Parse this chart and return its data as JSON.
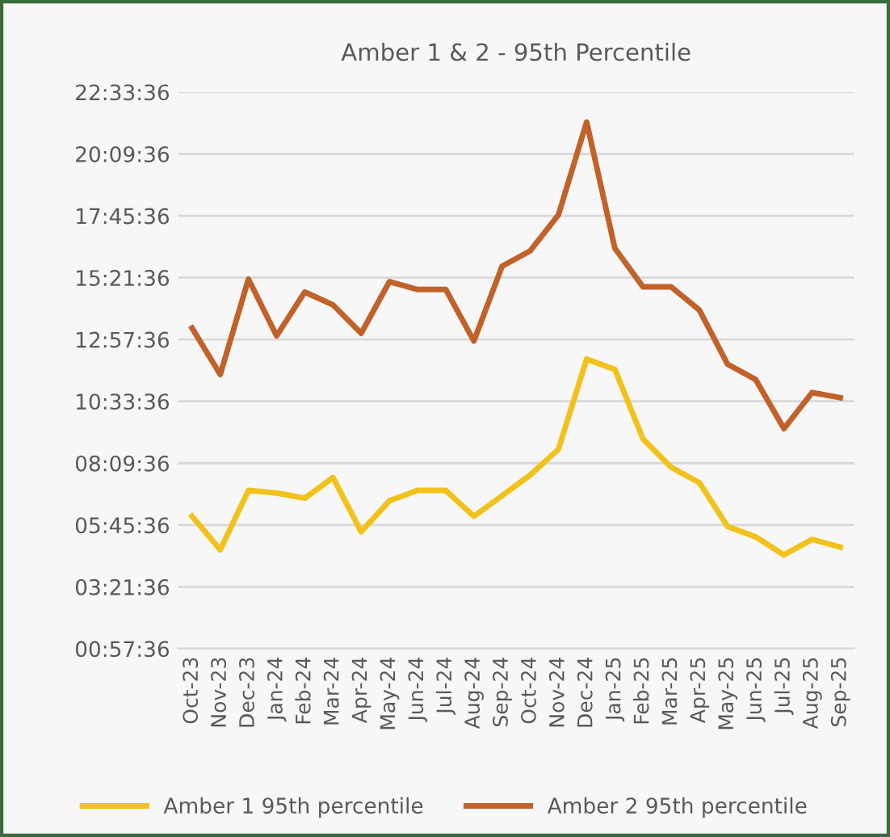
{
  "chart_data": {
    "type": "line",
    "title": "Amber 1 & 2 - 95th Percentile",
    "categories": [
      "Oct-23",
      "Nov-23",
      "Dec-23",
      "Jan-24",
      "Feb-24",
      "Mar-24",
      "Apr-24",
      "May-24",
      "Jun-24",
      "Jul-24",
      "Aug-24",
      "Sep-24",
      "Oct-24",
      "Nov-24",
      "Dec-24",
      "Jan-25",
      "Feb-25",
      "Mar-25",
      "Apr-25",
      "May-25",
      "Jun-25",
      "Jul-25",
      "Aug-25",
      "Sep-25"
    ],
    "series": [
      {
        "name": "Amber 1 95th percentile",
        "color": "#f2c21b",
        "values": [
          6.1,
          4.8,
          7.1,
          7.0,
          6.8,
          7.6,
          5.5,
          6.7,
          7.1,
          7.1,
          6.1,
          6.9,
          7.7,
          8.7,
          12.2,
          11.8,
          9.1,
          8.0,
          7.4,
          5.7,
          5.3,
          4.6,
          5.2,
          4.9
        ]
      },
      {
        "name": "Amber 2 95th percentile",
        "color": "#c0622a",
        "values": [
          13.4,
          11.6,
          15.3,
          13.1,
          14.8,
          14.3,
          13.2,
          15.2,
          14.9,
          14.9,
          12.9,
          15.8,
          16.4,
          17.8,
          21.4,
          16.5,
          15.0,
          15.0,
          14.1,
          12.0,
          11.4,
          9.5,
          10.9,
          10.7
        ]
      }
    ],
    "ylim": [
      0.96,
      22.56
    ],
    "yticks": [
      {
        "value": 0.96,
        "label": "00:57:36"
      },
      {
        "value": 3.36,
        "label": "03:21:36"
      },
      {
        "value": 5.76,
        "label": "05:45:36"
      },
      {
        "value": 8.16,
        "label": "08:09:36"
      },
      {
        "value": 10.56,
        "label": "10:33:36"
      },
      {
        "value": 12.96,
        "label": "12:57:36"
      },
      {
        "value": 15.36,
        "label": "15:21:36"
      },
      {
        "value": 17.76,
        "label": "17:45:36"
      },
      {
        "value": 20.16,
        "label": "20:09:36"
      },
      {
        "value": 22.56,
        "label": "22:33:36"
      }
    ],
    "grid": "y",
    "legend": "bottom",
    "marker": "none",
    "line_style": "solid"
  }
}
